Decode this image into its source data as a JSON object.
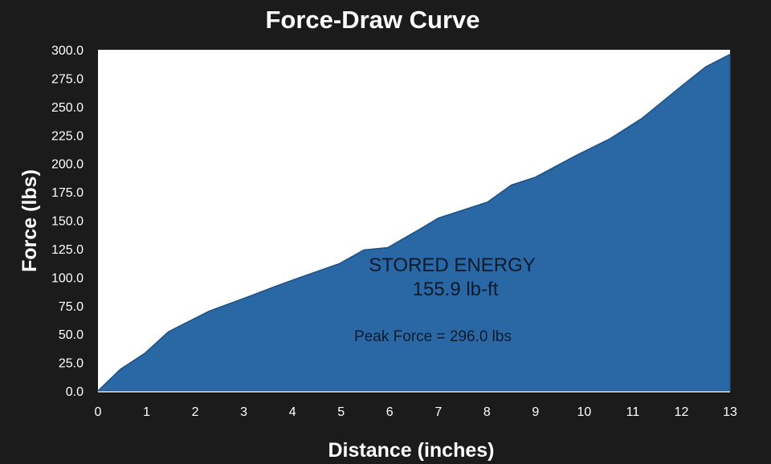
{
  "chart_data": {
    "type": "area",
    "title": "Force-Draw Curve",
    "xlabel": "Distance (inches)",
    "ylabel": "Force (lbs)",
    "xlim": [
      0,
      13
    ],
    "ylim": [
      0,
      300
    ],
    "xticks": [
      "0",
      "1",
      "2",
      "3",
      "4",
      "5",
      "6",
      "7",
      "8",
      "9",
      "10",
      "11",
      "12",
      "13"
    ],
    "yticks": [
      "0.0",
      "25.0",
      "50.0",
      "75.0",
      "100.0",
      "125.0",
      "150.0",
      "175.0",
      "200.0",
      "225.0",
      "250.0",
      "275.0",
      "300.0"
    ],
    "grid": false,
    "legend": "none",
    "fill_color": "#2a68a5",
    "x": [
      0,
      0.46,
      0.96,
      1.45,
      2.28,
      3.1,
      3.65,
      4.1,
      4.97,
      5.47,
      5.96,
      6.69,
      7.0,
      8.01,
      8.5,
      9.0,
      9.83,
      10.54,
      11.2,
      12.0,
      12.5,
      13.0
    ],
    "y": [
      0,
      19,
      33,
      52,
      70,
      83,
      92,
      99,
      112,
      124,
      126,
      144,
      152,
      166,
      181,
      188,
      207,
      222,
      240,
      268,
      285,
      296
    ],
    "annotations": {
      "stored_energy_label": "STORED ENERGY",
      "stored_energy_value": "155.9 lb-ft",
      "peak_force": "Peak Force = 296.0 lbs"
    }
  }
}
